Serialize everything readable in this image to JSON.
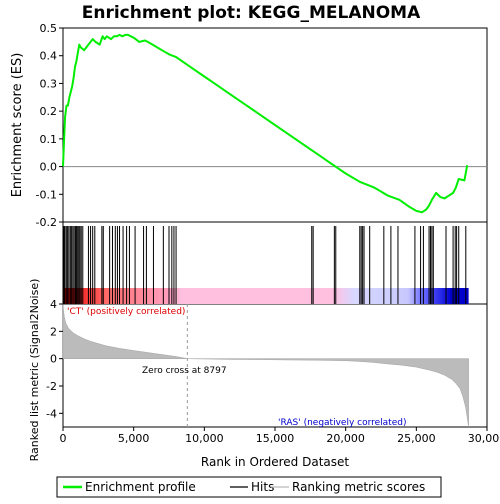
{
  "chart_data": {
    "type": "line",
    "title": "Enrichment plot: KEGG_MELANOMA",
    "es_panel": {
      "ylabel": "Enrichment score (ES)",
      "ylim": [
        -0.2,
        0.5
      ],
      "yticks": [
        -0.2,
        -0.1,
        0.0,
        0.1,
        0.2,
        0.3,
        0.4,
        0.5
      ],
      "ytick_labels": [
        "-0.2",
        "-0.1",
        "0.0",
        "0.1",
        "0.2",
        "0.3",
        "0.4",
        "0.5"
      ],
      "series": [
        {
          "name": "Enrichment profile",
          "color": "#00ee00",
          "x": [
            0,
            80,
            150,
            250,
            350,
            450,
            550,
            650,
            750,
            850,
            950,
            1050,
            1150,
            1250,
            1500,
            1800,
            1950,
            2100,
            2300,
            2600,
            2800,
            2950,
            3100,
            3400,
            3600,
            3800,
            4000,
            4200,
            4400,
            4600,
            4800,
            5000,
            5400,
            5800,
            6000,
            6500,
            7000,
            7500,
            8000,
            9000,
            10000,
            11000,
            12000,
            13000,
            14000,
            15000,
            16000,
            17000,
            18000,
            19000,
            20000,
            21000,
            22000,
            23000,
            23800,
            24500,
            25000,
            25400,
            25700,
            25900,
            26100,
            26400,
            26700,
            27000,
            27300,
            27600,
            27800,
            28000,
            28400,
            28600
          ],
          "y": [
            0.0,
            0.1,
            0.18,
            0.22,
            0.22,
            0.25,
            0.27,
            0.29,
            0.32,
            0.36,
            0.38,
            0.41,
            0.44,
            0.43,
            0.42,
            0.44,
            0.45,
            0.46,
            0.45,
            0.44,
            0.47,
            0.46,
            0.47,
            0.46,
            0.47,
            0.47,
            0.475,
            0.47,
            0.475,
            0.475,
            0.47,
            0.465,
            0.45,
            0.455,
            0.45,
            0.435,
            0.42,
            0.405,
            0.395,
            0.36,
            0.325,
            0.29,
            0.255,
            0.22,
            0.185,
            0.15,
            0.115,
            0.08,
            0.045,
            0.01,
            -0.025,
            -0.055,
            -0.075,
            -0.105,
            -0.12,
            -0.145,
            -0.16,
            -0.165,
            -0.155,
            -0.14,
            -0.12,
            -0.095,
            -0.11,
            -0.115,
            -0.105,
            -0.095,
            -0.075,
            -0.045,
            -0.05,
            0.005
          ]
        }
      ]
    },
    "hits_panel": {
      "legend_entry": "Hits",
      "hit_ranks": [
        40,
        90,
        150,
        260,
        330,
        420,
        520,
        610,
        700,
        790,
        880,
        960,
        1040,
        1120,
        1200,
        1290,
        1400,
        1800,
        1950,
        2100,
        2250,
        2750,
        2850,
        3300,
        3500,
        3700,
        3850,
        4000,
        4250,
        4500,
        4700,
        5100,
        5700,
        5900,
        6400,
        7100,
        7500,
        7700,
        7850,
        8000,
        17600,
        17700,
        19200,
        19300,
        21000,
        21100,
        21200,
        21300,
        21700,
        22700,
        23200,
        23700,
        24900,
        25300,
        25500,
        25900,
        26000,
        26100,
        26200,
        27100,
        27600,
        27750,
        27850,
        28000,
        28500
      ]
    },
    "metric_panel": {
      "ylabel": "Ranked list metric (Signal2Noise)",
      "ylim": [
        -5,
        4
      ],
      "yticks": [
        -4,
        -2,
        0,
        2,
        4
      ],
      "ytick_labels": [
        "-4",
        "-2",
        "0",
        "2",
        "4"
      ],
      "zero_cross_label": "Zero cross at 8797",
      "zero_cross_rank": 8797,
      "pos_label": "'CT' (positively correlated)",
      "neg_label": "'RAS' (negatively correlated)",
      "curve_x": [
        0,
        30,
        100,
        200,
        400,
        700,
        1000,
        1500,
        2000,
        3000,
        4000,
        5000,
        6000,
        7000,
        8000,
        8797,
        10000,
        12000,
        14000,
        16000,
        18000,
        20000,
        21000,
        22000,
        23000,
        24000,
        25000,
        26000,
        26500,
        27000,
        27500,
        27800,
        28100,
        28300,
        28500,
        28600,
        28700
      ],
      "curve_y": [
        4.0,
        3.6,
        3.0,
        2.6,
        2.2,
        1.9,
        1.7,
        1.45,
        1.25,
        0.95,
        0.75,
        0.6,
        0.45,
        0.3,
        0.15,
        0.0,
        -0.02,
        -0.05,
        -0.07,
        -0.09,
        -0.11,
        -0.15,
        -0.2,
        -0.28,
        -0.38,
        -0.48,
        -0.62,
        -0.85,
        -1.0,
        -1.2,
        -1.5,
        -1.8,
        -2.2,
        -2.8,
        -3.6,
        -4.3,
        -5.0
      ]
    },
    "x_axis": {
      "label": "Rank in Ordered Dataset",
      "xlim": [
        0,
        30000
      ],
      "ticks": [
        0,
        5000,
        10000,
        15000,
        20000,
        25000,
        30000
      ],
      "tick_labels": [
        "0",
        "5,000",
        "10,000",
        "15,000",
        "20,000",
        "25,000",
        "30,000"
      ]
    },
    "legend": {
      "placement": "bottom",
      "entries": [
        "Enrichment profile",
        "Hits",
        "Ranking metric scores"
      ]
    }
  }
}
